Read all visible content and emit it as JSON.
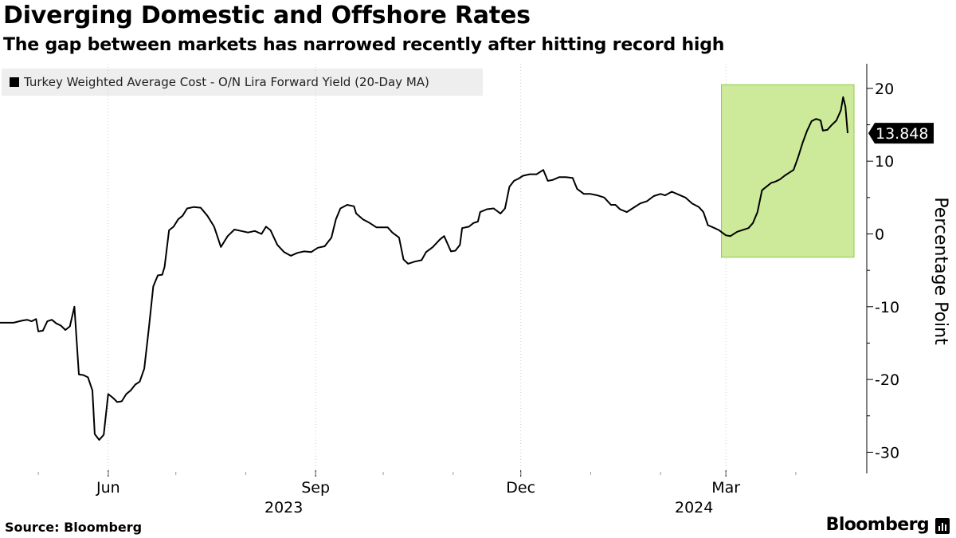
{
  "title": "Diverging Domestic and Offshore Rates",
  "subtitle": "The gap between markets has narrowed recently after hitting record high",
  "source": "Source: Bloomberg",
  "brand": "Bloomberg",
  "colors": {
    "line": "#000000",
    "highlight_fill": "#ccea99",
    "highlight_stroke": "#8fcc45",
    "legend_bg": "#eeeeee",
    "grid": "#cccccc"
  },
  "chart_data": {
    "type": "line",
    "title": "Diverging Domestic and Offshore Rates",
    "subtitle": "The gap between markets has narrowed recently after hitting record high",
    "ylabel": "Percentage Point",
    "ylim": [
      -33,
      23
    ],
    "yticks": [
      20,
      10,
      0,
      -10,
      -20,
      -30
    ],
    "ytick_labels": [
      "20",
      "10",
      "0",
      "-10",
      "-20",
      "-30"
    ],
    "y_axis_position": "right",
    "grid": "vertical dotted",
    "x_start": "2023-04-14",
    "x_end": "2024-04-24",
    "xticks": [
      {
        "date": "2023-06-01",
        "label": "Jun",
        "year": "2023"
      },
      {
        "date": "2023-09-01",
        "label": "Sep",
        "year": ""
      },
      {
        "date": "2023-12-01",
        "label": "Dec",
        "year": ""
      },
      {
        "date": "2024-03-01",
        "label": "Mar",
        "year": "2024"
      }
    ],
    "year_labels": [
      {
        "date": "2023-09-01",
        "label": "2023"
      },
      {
        "date": "2024-03-01",
        "label": "2024"
      }
    ],
    "series": [
      {
        "name": "Turkey Weighted Average Cost - O/N Lira Forward Yield (20-Day MA)",
        "color": "#000000",
        "last_value_label": "13.848",
        "points": [
          [
            "2023-04-14",
            -12.2
          ],
          [
            "2023-04-17",
            -12.2
          ],
          [
            "2023-04-20",
            -12.2
          ],
          [
            "2023-04-24",
            -11.9
          ],
          [
            "2023-04-26",
            -11.8
          ],
          [
            "2023-04-28",
            -12.0
          ],
          [
            "2023-04-30",
            -11.7
          ],
          [
            "2023-05-01",
            -13.4
          ],
          [
            "2023-05-03",
            -13.3
          ],
          [
            "2023-05-05",
            -12.0
          ],
          [
            "2023-05-07",
            -11.8
          ],
          [
            "2023-05-09",
            -12.3
          ],
          [
            "2023-05-11",
            -12.6
          ],
          [
            "2023-05-13",
            -13.2
          ],
          [
            "2023-05-15",
            -12.7
          ],
          [
            "2023-05-17",
            -10.0
          ],
          [
            "2023-05-19",
            -19.3
          ],
          [
            "2023-05-21",
            -19.4
          ],
          [
            "2023-05-23",
            -19.7
          ],
          [
            "2023-05-25",
            -21.5
          ],
          [
            "2023-05-26",
            -27.5
          ],
          [
            "2023-05-28",
            -28.3
          ],
          [
            "2023-05-30",
            -27.6
          ],
          [
            "2023-06-01",
            -22.0
          ],
          [
            "2023-06-03",
            -22.5
          ],
          [
            "2023-06-05",
            -23.1
          ],
          [
            "2023-06-07",
            -23.0
          ],
          [
            "2023-06-09",
            -22.0
          ],
          [
            "2023-06-11",
            -21.5
          ],
          [
            "2023-06-13",
            -20.7
          ],
          [
            "2023-06-15",
            -20.3
          ],
          [
            "2023-06-17",
            -18.5
          ],
          [
            "2023-06-19",
            -13.0
          ],
          [
            "2023-06-21",
            -7.2
          ],
          [
            "2023-06-23",
            -5.7
          ],
          [
            "2023-06-25",
            -5.6
          ],
          [
            "2023-06-26",
            -4.5
          ],
          [
            "2023-06-28",
            0.5
          ],
          [
            "2023-06-30",
            1.0
          ],
          [
            "2023-07-02",
            2.0
          ],
          [
            "2023-07-04",
            2.5
          ],
          [
            "2023-07-06",
            3.5
          ],
          [
            "2023-07-09",
            3.7
          ],
          [
            "2023-07-12",
            3.6
          ],
          [
            "2023-07-15",
            2.5
          ],
          [
            "2023-07-18",
            1.0
          ],
          [
            "2023-07-21",
            -1.8
          ],
          [
            "2023-07-24",
            -0.3
          ],
          [
            "2023-07-27",
            0.6
          ],
          [
            "2023-07-30",
            0.4
          ],
          [
            "2023-08-02",
            0.2
          ],
          [
            "2023-08-05",
            0.4
          ],
          [
            "2023-08-08",
            0.0
          ],
          [
            "2023-08-10",
            1.0
          ],
          [
            "2023-08-12",
            0.5
          ],
          [
            "2023-08-15",
            -1.5
          ],
          [
            "2023-08-18",
            -2.5
          ],
          [
            "2023-08-21",
            -3.0
          ],
          [
            "2023-08-24",
            -2.6
          ],
          [
            "2023-08-27",
            -2.4
          ],
          [
            "2023-08-30",
            -2.5
          ],
          [
            "2023-09-02",
            -1.9
          ],
          [
            "2023-09-05",
            -1.7
          ],
          [
            "2023-09-08",
            -0.5
          ],
          [
            "2023-09-10",
            2.0
          ],
          [
            "2023-09-12",
            3.5
          ],
          [
            "2023-09-15",
            4.0
          ],
          [
            "2023-09-18",
            3.8
          ],
          [
            "2023-09-19",
            2.8
          ],
          [
            "2023-09-22",
            2.0
          ],
          [
            "2023-09-25",
            1.5
          ],
          [
            "2023-09-28",
            0.9
          ],
          [
            "2023-10-03",
            0.9
          ],
          [
            "2023-10-05",
            0.2
          ],
          [
            "2023-10-08",
            -0.5
          ],
          [
            "2023-10-10",
            -3.5
          ],
          [
            "2023-10-12",
            -4.1
          ],
          [
            "2023-10-15",
            -3.8
          ],
          [
            "2023-10-18",
            -3.6
          ],
          [
            "2023-10-20",
            -2.5
          ],
          [
            "2023-10-23",
            -1.8
          ],
          [
            "2023-10-26",
            -0.8
          ],
          [
            "2023-10-28",
            -0.3
          ],
          [
            "2023-10-31",
            -2.4
          ],
          [
            "2023-11-02",
            -2.3
          ],
          [
            "2023-11-04",
            -1.5
          ],
          [
            "2023-11-05",
            0.8
          ],
          [
            "2023-11-08",
            1.0
          ],
          [
            "2023-11-10",
            1.5
          ],
          [
            "2023-11-12",
            1.7
          ],
          [
            "2023-11-13",
            3.0
          ],
          [
            "2023-11-16",
            3.4
          ],
          [
            "2023-11-19",
            3.5
          ],
          [
            "2023-11-22",
            2.8
          ],
          [
            "2023-11-24",
            3.5
          ],
          [
            "2023-11-26",
            6.5
          ],
          [
            "2023-11-28",
            7.3
          ],
          [
            "2023-11-30",
            7.6
          ],
          [
            "2023-12-02",
            8.0
          ],
          [
            "2023-12-05",
            8.2
          ],
          [
            "2023-12-08",
            8.2
          ],
          [
            "2023-12-11",
            8.8
          ],
          [
            "2023-12-13",
            7.3
          ],
          [
            "2023-12-15",
            7.4
          ],
          [
            "2023-12-18",
            7.8
          ],
          [
            "2023-12-21",
            7.8
          ],
          [
            "2023-12-24",
            7.7
          ],
          [
            "2023-12-26",
            6.2
          ],
          [
            "2023-12-29",
            5.5
          ],
          [
            "2024-01-01",
            5.5
          ],
          [
            "2024-01-04",
            5.3
          ],
          [
            "2024-01-07",
            5.0
          ],
          [
            "2024-01-10",
            4.0
          ],
          [
            "2024-01-12",
            4.0
          ],
          [
            "2024-01-14",
            3.4
          ],
          [
            "2024-01-17",
            3.0
          ],
          [
            "2024-01-20",
            3.6
          ],
          [
            "2024-01-23",
            4.2
          ],
          [
            "2024-01-26",
            4.5
          ],
          [
            "2024-01-29",
            5.2
          ],
          [
            "2024-02-01",
            5.5
          ],
          [
            "2024-02-03",
            5.3
          ],
          [
            "2024-02-06",
            5.8
          ],
          [
            "2024-02-09",
            5.4
          ],
          [
            "2024-02-12",
            5.0
          ],
          [
            "2024-02-15",
            4.2
          ],
          [
            "2024-02-18",
            3.7
          ],
          [
            "2024-02-20",
            3.0
          ],
          [
            "2024-02-22",
            1.2
          ],
          [
            "2024-02-25",
            0.8
          ],
          [
            "2024-02-27",
            0.5
          ],
          [
            "2024-03-01",
            -0.2
          ],
          [
            "2024-03-03",
            -0.3
          ],
          [
            "2024-03-06",
            0.3
          ],
          [
            "2024-03-08",
            0.5
          ],
          [
            "2024-03-11",
            0.8
          ],
          [
            "2024-03-13",
            1.5
          ],
          [
            "2024-03-15",
            3.0
          ],
          [
            "2024-03-17",
            6.0
          ],
          [
            "2024-03-19",
            6.5
          ],
          [
            "2024-03-21",
            7.0
          ],
          [
            "2024-03-23",
            7.2
          ],
          [
            "2024-03-25",
            7.5
          ],
          [
            "2024-03-27",
            8.0
          ],
          [
            "2024-03-29",
            8.4
          ],
          [
            "2024-03-31",
            8.8
          ],
          [
            "2024-04-02",
            10.5
          ],
          [
            "2024-04-04",
            12.5
          ],
          [
            "2024-04-06",
            14.2
          ],
          [
            "2024-04-08",
            15.5
          ],
          [
            "2024-04-10",
            15.8
          ],
          [
            "2024-04-12",
            15.6
          ],
          [
            "2024-04-13",
            14.2
          ],
          [
            "2024-04-15",
            14.3
          ],
          [
            "2024-04-17",
            15.0
          ],
          [
            "2024-04-19",
            15.6
          ],
          [
            "2024-04-21",
            17.0
          ],
          [
            "2024-04-22",
            18.8
          ],
          [
            "2024-04-23",
            17.5
          ],
          [
            "2024-04-24",
            13.848
          ]
        ]
      }
    ],
    "highlight": {
      "x_start": "2024-02-28",
      "x_end": "2024-05-25",
      "y_top": 20.5,
      "y_bottom": -3.2
    }
  }
}
